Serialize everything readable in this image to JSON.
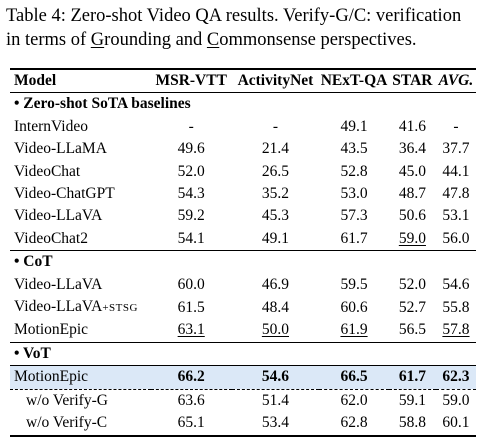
{
  "caption": {
    "prefix": "Table 4:  Zero-shot Video QA results. Verify-G/C: verification in terms of ",
    "g_letter": "G",
    "g_rest": "rounding and ",
    "c_letter": "C",
    "c_rest": "ommonsense perspectives."
  },
  "headers": [
    "Model",
    "MSR-VTT",
    "ActivityNet",
    "NExT-QA",
    "STAR",
    "AVG."
  ],
  "sections": [
    {
      "title": "• Zero-shot SoTA baselines",
      "rows": [
        {
          "model": "InternVideo",
          "values": [
            "-",
            "-",
            "49.1",
            "41.6",
            "-"
          ]
        },
        {
          "model": "Video-LLaMA",
          "values": [
            "49.6",
            "21.4",
            "43.5",
            "36.4",
            "37.7"
          ]
        },
        {
          "model": "VideoChat",
          "values": [
            "52.0",
            "26.5",
            "52.8",
            "45.0",
            "44.1"
          ]
        },
        {
          "model": "Video-ChatGPT",
          "values": [
            "54.3",
            "35.2",
            "53.0",
            "48.7",
            "47.8"
          ]
        },
        {
          "model": "Video-LLaVA",
          "values": [
            "59.2",
            "45.3",
            "57.3",
            "50.6",
            "53.1"
          ]
        },
        {
          "model": "VideoChat2",
          "values": [
            "54.1",
            "49.1",
            "61.7",
            "59.0",
            "56.0"
          ]
        }
      ]
    },
    {
      "title": "• CoT",
      "rows": [
        {
          "model": "Video-LLaVA",
          "values": [
            "60.0",
            "46.9",
            "59.5",
            "52.0",
            "54.6"
          ]
        },
        {
          "model": "Video-LLaVA",
          "suffix": "+STSG",
          "values": [
            "61.5",
            "48.4",
            "60.6",
            "52.7",
            "55.8"
          ]
        },
        {
          "model": "MotionEpic",
          "values": [
            "63.1",
            "50.0",
            "61.9",
            "56.5",
            "57.8"
          ]
        }
      ]
    },
    {
      "title": "• VoT",
      "rows": [
        {
          "model": "MotionEpic",
          "values": [
            "66.2",
            "54.6",
            "66.5",
            "61.7",
            "62.3"
          ]
        },
        {
          "model": "w/o Verify-G",
          "values": [
            "63.6",
            "51.4",
            "62.0",
            "59.1",
            "59.0"
          ]
        },
        {
          "model": "w/o Verify-C",
          "values": [
            "65.1",
            "53.4",
            "62.8",
            "58.8",
            "60.1"
          ]
        }
      ]
    }
  ]
}
